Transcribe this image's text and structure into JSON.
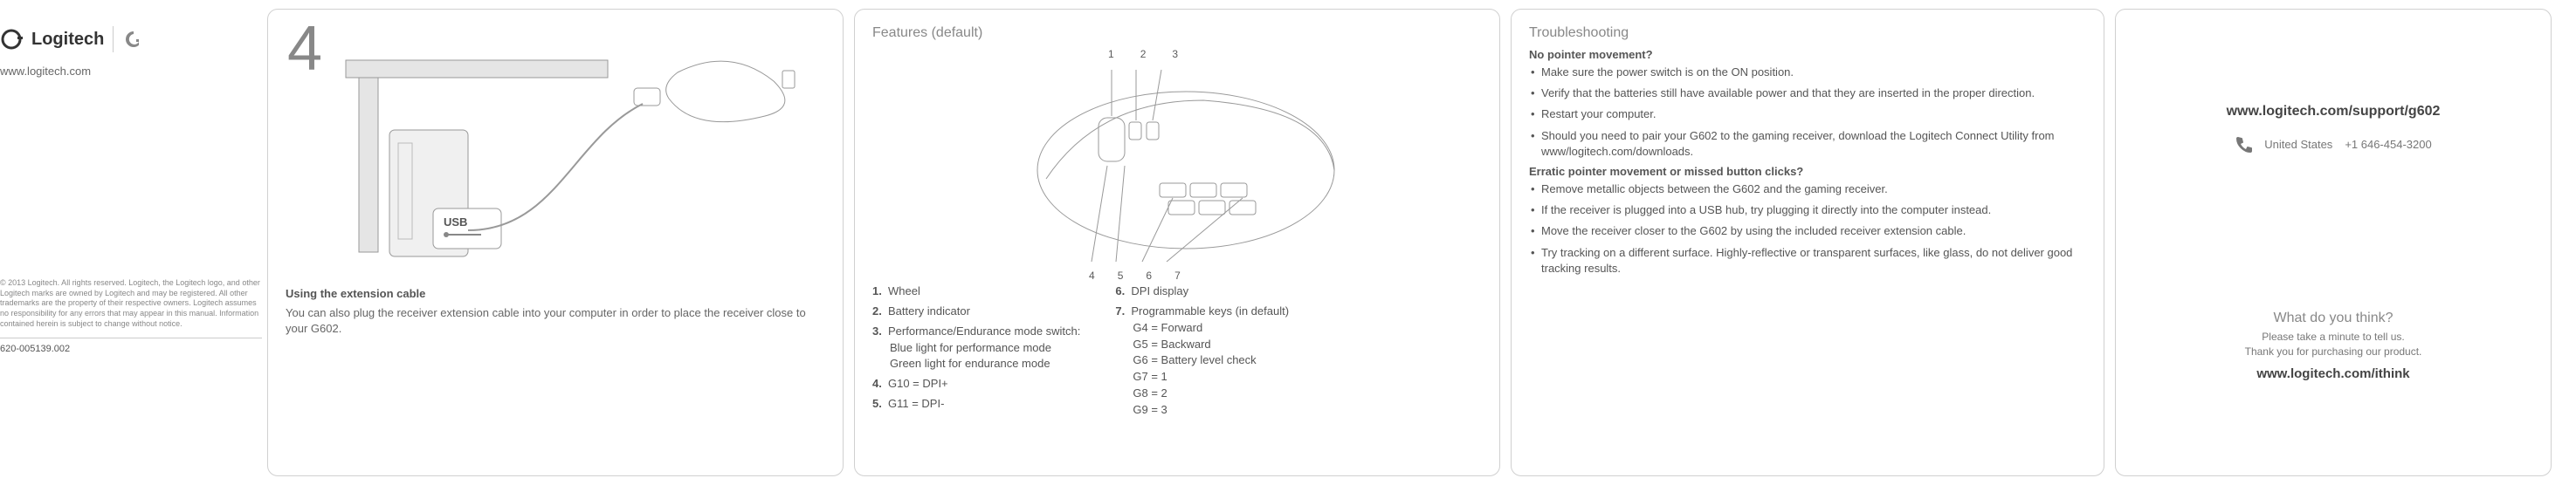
{
  "brand": {
    "name": "Logitech",
    "url": "www.logitech.com",
    "legal": "© 2013 Logitech. All rights reserved. Logitech, the Logitech logo, and other Logitech marks are owned by Logitech and may be registered. All other trademarks are the property of their respective owners. Logitech assumes no responsibility for any errors that may appear in this manual. Information contained herein is subject to change without notice.",
    "part_number": "620-005139.002"
  },
  "step4": {
    "number": "4",
    "usb_label": "USB",
    "title": "Using the extension cable",
    "body": "You can also plug the receiver extension cable into your computer in order to place the receiver close to your G602."
  },
  "features": {
    "heading": "Features (default)",
    "top_labels": [
      "1",
      "2",
      "3"
    ],
    "bottom_labels": [
      "4",
      "5",
      "6",
      "7"
    ],
    "left_list": [
      {
        "n": "1.",
        "t": "Wheel"
      },
      {
        "n": "2.",
        "t": "Battery indicator"
      },
      {
        "n": "3.",
        "t": "Performance/Endurance mode switch:",
        "subs": [
          "Blue light for performance mode",
          "Green light for endurance mode"
        ]
      },
      {
        "n": "4.",
        "t": "G10 = DPI+"
      },
      {
        "n": "5.",
        "t": "G11 = DPI-"
      }
    ],
    "right_list": [
      {
        "n": "6.",
        "t": "DPI display"
      },
      {
        "n": "7.",
        "t": "Programmable keys (in default)",
        "subs": [
          "G4 = Forward",
          "G5 = Backward",
          "G6 = Battery level check",
          "G7 = 1",
          "G8 = 2",
          "G9 = 3"
        ]
      }
    ]
  },
  "troubleshooting": {
    "heading": "Troubleshooting",
    "q1": "No pointer movement?",
    "q1_items": [
      "Make sure the power switch is on the ON position.",
      "Verify that the batteries still have available power and that they are inserted in the proper direction.",
      "Restart your computer.",
      "Should you need to pair your G602 to the gaming receiver, download the Logitech Connect Utility from www/logitech.com/downloads."
    ],
    "q2": "Erratic pointer movement or missed button clicks?",
    "q2_items": [
      "Remove metallic objects between the G602 and the gaming receiver.",
      "If the receiver is plugged into a USB hub, try plugging it directly into the computer instead.",
      "Move the receiver closer to the G602 by using the included receiver extension cable.",
      "Try tracking on a different surface. Highly-reflective or transparent surfaces, like glass, do not deliver good tracking results."
    ]
  },
  "support": {
    "url": "www.logitech.com/support/g602",
    "country": "United States",
    "phone": "+1 646-454-3200",
    "think_h": "What do you think?",
    "think_b1": "Please take a minute to tell us.",
    "think_b2": "Thank you for purchasing our product.",
    "think_url": "www.logitech.com/ithink"
  },
  "colors": {
    "border": "#d0d0d0",
    "text": "#5a5a5a",
    "muted": "#888888"
  }
}
